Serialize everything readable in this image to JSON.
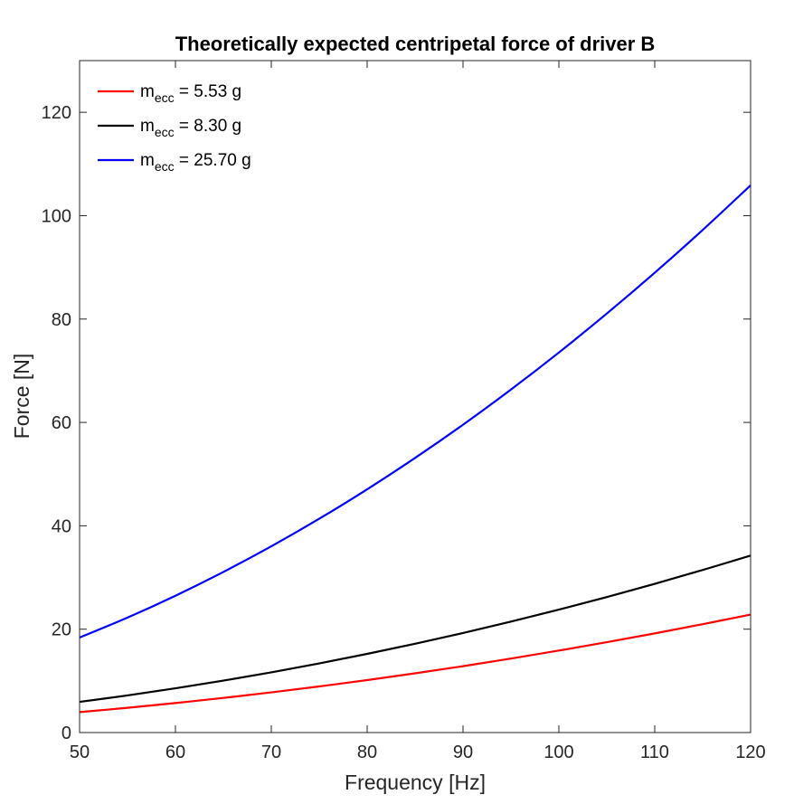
{
  "chart_data": {
    "type": "line",
    "title": "Theoretically expected centripetal force of driver B",
    "xlabel": "Frequency [Hz]",
    "ylabel": "Force [N]",
    "xlim": [
      50,
      120
    ],
    "ylim": [
      0,
      130
    ],
    "xticks": [
      50,
      60,
      70,
      80,
      90,
      100,
      110,
      120
    ],
    "yticks": [
      0,
      20,
      40,
      60,
      80,
      100,
      120
    ],
    "grid": false,
    "box": true,
    "legend_location": "top-left",
    "series": [
      {
        "name_base": "m",
        "name_sub": "ecc",
        "name_rest": " = 5.53 g",
        "color": "#ff0000",
        "x": [
          50,
          55,
          60,
          65,
          70,
          75,
          80,
          85,
          90,
          95,
          100,
          105,
          110,
          115,
          120
        ],
        "y": [
          3.96,
          4.79,
          5.71,
          6.7,
          7.77,
          8.92,
          10.15,
          11.46,
          12.84,
          14.31,
          15.86,
          17.48,
          19.18,
          20.97,
          22.82
        ]
      },
      {
        "name_base": "m",
        "name_sub": "ecc",
        "name_rest": " = 8.30 g",
        "color": "#000000",
        "x": [
          50,
          55,
          60,
          65,
          70,
          75,
          80,
          85,
          90,
          95,
          100,
          105,
          110,
          115,
          120
        ],
        "y": [
          5.94,
          7.19,
          8.56,
          10.05,
          11.65,
          13.38,
          15.22,
          17.18,
          19.26,
          21.46,
          23.78,
          26.22,
          28.78,
          31.45,
          34.24
        ]
      },
      {
        "name_base": "m",
        "name_sub": "ecc",
        "name_rest": " = 25.70 g",
        "color": "#0000ff",
        "x": [
          50,
          55,
          60,
          65,
          70,
          75,
          80,
          85,
          90,
          95,
          100,
          105,
          110,
          115,
          120
        ],
        "y": [
          18.38,
          22.24,
          26.47,
          31.07,
          36.03,
          41.36,
          47.06,
          53.13,
          59.56,
          66.36,
          73.52,
          81.06,
          88.96,
          97.23,
          105.87
        ]
      }
    ]
  }
}
